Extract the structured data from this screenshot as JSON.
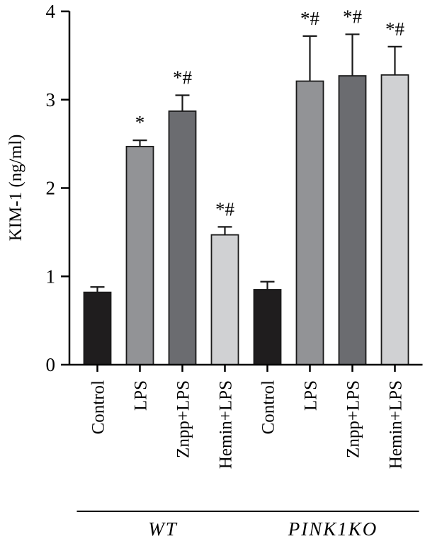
{
  "chart_data": {
    "type": "bar",
    "ylabel": "KIM-1 (ng/ml)",
    "ylim": [
      0,
      4
    ],
    "yticks": [
      0,
      1,
      2,
      3,
      4
    ],
    "grid": false,
    "categories": [
      "Control",
      "LPS",
      "Znpp+LPS",
      "Hemin+LPS",
      "Control",
      "LPS",
      "Znpp+LPS",
      "Hemin+LPS"
    ],
    "values": [
      0.82,
      2.47,
      2.87,
      1.47,
      0.85,
      3.21,
      3.27,
      3.28
    ],
    "errors": [
      0.06,
      0.07,
      0.18,
      0.09,
      0.09,
      0.51,
      0.47,
      0.32
    ],
    "significance": [
      "",
      "*",
      "*#",
      "*#",
      "",
      "*#",
      "*#",
      "*#"
    ],
    "bar_colors": [
      "#1f1d1e",
      "#929396",
      "#6b6c70",
      "#d0d1d3",
      "#1f1d1e",
      "#929396",
      "#6b6c70",
      "#d0d1d3"
    ],
    "groups": [
      {
        "label": "WT",
        "start": 0,
        "end": 3
      },
      {
        "label": "PINK1KO",
        "start": 4,
        "end": 7
      }
    ]
  }
}
